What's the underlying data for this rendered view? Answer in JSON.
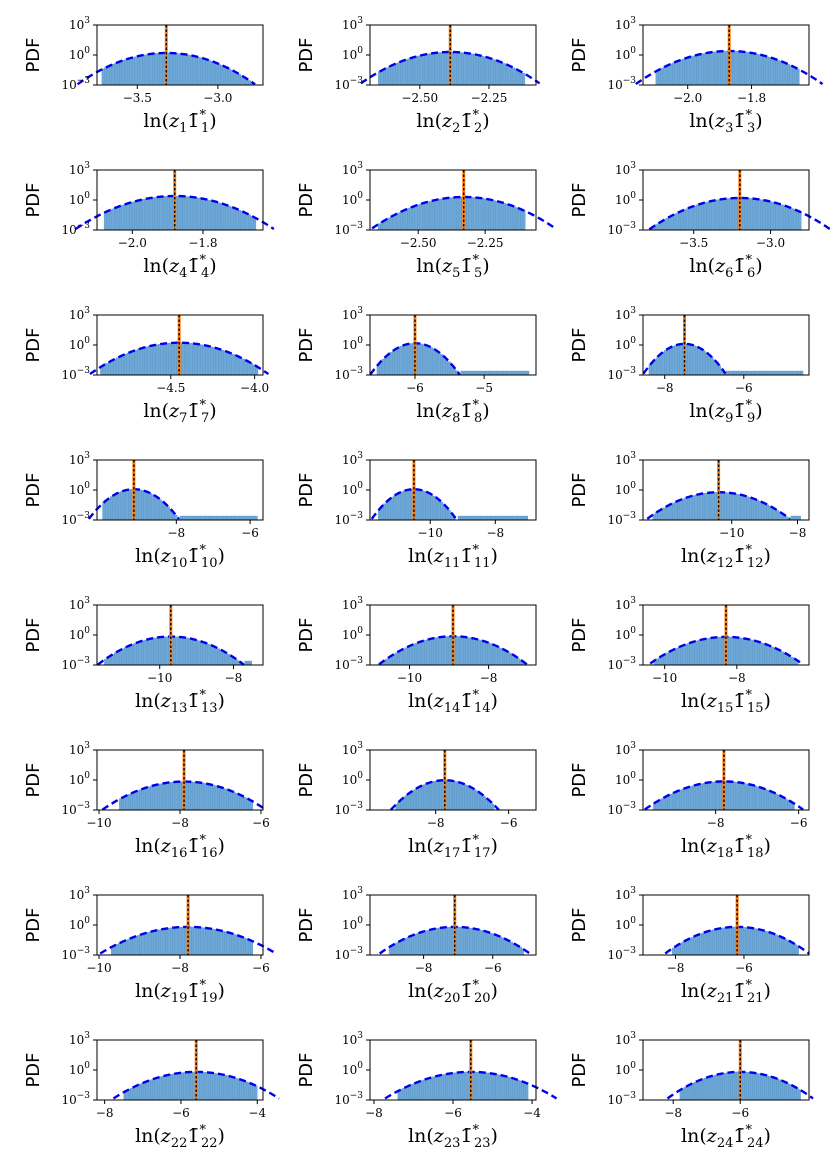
{
  "chart_data": [
    {
      "type": "histogram",
      "panel": 1,
      "ylabel": "PDF",
      "xlabel": {
        "idx": "1",
        "sub": "1"
      },
      "y_ticks": [
        "10",
        "10",
        "10"
      ],
      "y_tick_exps": [
        "3",
        "0",
        "−3"
      ],
      "ylim_log10": [
        -3,
        3
      ],
      "xlim": [
        -3.75,
        -2.72
      ],
      "xticks": [
        -3.5,
        -3.0
      ],
      "xtick_labels": [
        "−3.5",
        "−3.0"
      ],
      "mean": -3.32,
      "std": 0.145,
      "peak": 1.6,
      "range": [
        -3.72,
        -2.78
      ]
    },
    {
      "type": "histogram",
      "panel": 2,
      "ylabel": "PDF",
      "xlabel": {
        "idx": "2",
        "sub": "2"
      },
      "y_ticks": [
        "10",
        "10",
        "10"
      ],
      "y_tick_exps": [
        "3",
        "0",
        "−3"
      ],
      "ylim_log10": [
        -3,
        3
      ],
      "xlim": [
        -2.68,
        -2.08
      ],
      "xticks": [
        -2.5,
        -2.25
      ],
      "xtick_labels": [
        "−2.50",
        "−2.25"
      ],
      "mean": -2.39,
      "std": 0.085,
      "peak": 2.0,
      "range": [
        -2.65,
        -2.12
      ]
    },
    {
      "type": "histogram",
      "panel": 3,
      "ylabel": "PDF",
      "xlabel": {
        "idx": "3",
        "sub": "3"
      },
      "y_ticks": [
        "10",
        "10",
        "10"
      ],
      "y_tick_exps": [
        "3",
        "0",
        "−3"
      ],
      "ylim_log10": [
        -3,
        3
      ],
      "xlim": [
        -2.14,
        -1.62
      ],
      "xticks": [
        -2.0,
        -1.8
      ],
      "xtick_labels": [
        "−2.0",
        "−1.8"
      ],
      "mean": -1.87,
      "std": 0.075,
      "peak": 2.5,
      "range": [
        -2.1,
        -1.65
      ]
    },
    {
      "type": "histogram",
      "panel": 4,
      "ylabel": "PDF",
      "xlabel": {
        "idx": "4",
        "sub": "4"
      },
      "y_ticks": [
        "10",
        "10",
        "10"
      ],
      "y_tick_exps": [
        "3",
        "0",
        "−3"
      ],
      "ylim_log10": [
        -3,
        3
      ],
      "xlim": [
        -2.1,
        -1.63
      ],
      "xticks": [
        -2.0,
        -1.8
      ],
      "xtick_labels": [
        "−2.0",
        "−1.8"
      ],
      "mean": -1.88,
      "std": 0.072,
      "peak": 2.5,
      "range": [
        -2.08,
        -1.65
      ]
    },
    {
      "type": "histogram",
      "panel": 5,
      "ylabel": "PDF",
      "xlabel": {
        "idx": "5",
        "sub": "5"
      },
      "y_ticks": [
        "10",
        "10",
        "10"
      ],
      "y_tick_exps": [
        "3",
        "0",
        "−3"
      ],
      "ylim_log10": [
        -3,
        3
      ],
      "xlim": [
        -2.68,
        -2.06
      ],
      "xticks": [
        -2.5,
        -2.25
      ],
      "xtick_labels": [
        "−2.50",
        "−2.25"
      ],
      "mean": -2.33,
      "std": 0.09,
      "peak": 2.0,
      "range": [
        -2.65,
        -2.1
      ]
    },
    {
      "type": "histogram",
      "panel": 6,
      "ylabel": "PDF",
      "xlabel": {
        "idx": "6",
        "sub": "6"
      },
      "y_ticks": [
        "10",
        "10",
        "10"
      ],
      "y_tick_exps": [
        "3",
        "0",
        "−3"
      ],
      "ylim_log10": [
        -3,
        3
      ],
      "xlim": [
        -3.83,
        -2.75
      ],
      "xticks": [
        -3.5,
        -3.0
      ],
      "xtick_labels": [
        "−3.5",
        "−3.0"
      ],
      "mean": -3.2,
      "std": 0.155,
      "peak": 1.6,
      "range": [
        -3.8,
        -2.8
      ]
    },
    {
      "type": "histogram",
      "panel": 7,
      "ylabel": "PDF",
      "xlabel": {
        "idx": "7",
        "sub": "7"
      },
      "y_ticks": [
        "10",
        "10",
        "10"
      ],
      "y_tick_exps": [
        "3",
        "0",
        "−3"
      ],
      "ylim_log10": [
        -3,
        3
      ],
      "xlim": [
        -4.94,
        -3.95
      ],
      "xticks": [
        -4.5,
        -4.0
      ],
      "xtick_labels": [
        "−4.5",
        "−4.0"
      ],
      "mean": -4.45,
      "std": 0.14,
      "peak": 1.7,
      "range": [
        -4.92,
        -3.98
      ]
    },
    {
      "type": "histogram",
      "panel": 8,
      "ylabel": "PDF",
      "xlabel": {
        "idx": "8",
        "sub": "8"
      },
      "y_ticks": [
        "10",
        "10",
        "10"
      ],
      "y_tick_exps": [
        "3",
        "0",
        "−3"
      ],
      "ylim_log10": [
        -3,
        3
      ],
      "xlim": [
        -6.65,
        -4.25
      ],
      "xticks": [
        -6,
        -5
      ],
      "xtick_labels": [
        "−6",
        "−5"
      ],
      "mean": -6.0,
      "std": 0.17,
      "peak": 1.5,
      "range": [
        -6.55,
        -4.35
      ]
    },
    {
      "type": "histogram",
      "panel": 9,
      "ylabel": "PDF",
      "xlabel": {
        "idx": "9",
        "sub": "9"
      },
      "y_ticks": [
        "10",
        "10",
        "10"
      ],
      "y_tick_exps": [
        "3",
        "0",
        "−3"
      ],
      "ylim_log10": [
        -3,
        3
      ],
      "xlim": [
        -8.55,
        -4.35
      ],
      "xticks": [
        -8,
        -6
      ],
      "xtick_labels": [
        "−8",
        "−6"
      ],
      "mean": -7.5,
      "std": 0.28,
      "peak": 1.3,
      "range": [
        -8.4,
        -4.5
      ]
    },
    {
      "type": "histogram",
      "panel": 10,
      "ylabel": "PDF",
      "xlabel": {
        "idx": "10",
        "sub": "10"
      },
      "y_ticks": [
        "10",
        "10",
        "10"
      ],
      "y_tick_exps": [
        "3",
        "0",
        "−3"
      ],
      "ylim_log10": [
        -3,
        3
      ],
      "xlim": [
        -10.15,
        -5.65
      ],
      "xticks": [
        -8,
        -6
      ],
      "xtick_labels": [
        "−8",
        "−6"
      ],
      "mean": -9.15,
      "std": 0.33,
      "peak": 1.2,
      "range": [
        -10.0,
        -5.8
      ]
    },
    {
      "type": "histogram",
      "panel": 11,
      "ylabel": "PDF",
      "xlabel": {
        "idx": "11",
        "sub": "11"
      },
      "y_ticks": [
        "10",
        "10",
        "10"
      ],
      "y_tick_exps": [
        "3",
        "0",
        "−3"
      ],
      "ylim_log10": [
        -3,
        3
      ],
      "xlim": [
        -11.85,
        -6.75
      ],
      "xticks": [
        -10,
        -8
      ],
      "xtick_labels": [
        "−10",
        "−8"
      ],
      "mean": -10.5,
      "std": 0.35,
      "peak": 1.2,
      "range": [
        -11.6,
        -7.0
      ]
    },
    {
      "type": "histogram",
      "panel": 12,
      "ylabel": "PDF",
      "xlabel": {
        "idx": "12",
        "sub": "12"
      },
      "y_ticks": [
        "10",
        "10",
        "10"
      ],
      "y_tick_exps": [
        "3",
        "0",
        "−3"
      ],
      "ylim_log10": [
        -3,
        3
      ],
      "xlim": [
        -12.7,
        -7.65
      ],
      "xticks": [
        -10,
        -8
      ],
      "xtick_labels": [
        "−10",
        "−8"
      ],
      "mean": -10.4,
      "std": 0.62,
      "peak": 0.6,
      "range": [
        -12.4,
        -7.9
      ]
    },
    {
      "type": "histogram",
      "panel": 13,
      "ylabel": "PDF",
      "xlabel": {
        "idx": "13",
        "sub": "13"
      },
      "y_ticks": [
        "10",
        "10",
        "10"
      ],
      "y_tick_exps": [
        "3",
        "0",
        "−3"
      ],
      "ylim_log10": [
        -3,
        3
      ],
      "xlim": [
        -11.7,
        -7.2
      ],
      "xticks": [
        -10,
        -8
      ],
      "xtick_labels": [
        "−10",
        "−8"
      ],
      "mean": -9.7,
      "std": 0.55,
      "peak": 0.7,
      "range": [
        -11.5,
        -7.5
      ]
    },
    {
      "type": "histogram",
      "panel": 14,
      "ylabel": "PDF",
      "xlabel": {
        "idx": "14",
        "sub": "14"
      },
      "y_ticks": [
        "10",
        "10",
        "10"
      ],
      "y_tick_exps": [
        "3",
        "0",
        "−3"
      ],
      "ylim_log10": [
        -3,
        3
      ],
      "xlim": [
        -11.0,
        -6.8
      ],
      "xticks": [
        -10,
        -8
      ],
      "xtick_labels": [
        "−10",
        "−8"
      ],
      "mean": -8.9,
      "std": 0.52,
      "peak": 0.75,
      "range": [
        -10.8,
        -7.1
      ]
    },
    {
      "type": "histogram",
      "panel": 15,
      "ylabel": "PDF",
      "xlabel": {
        "idx": "15",
        "sub": "15"
      },
      "y_ticks": [
        "10",
        "10",
        "10"
      ],
      "y_tick_exps": [
        "3",
        "0",
        "−3"
      ],
      "ylim_log10": [
        -3,
        3
      ],
      "xlim": [
        -10.6,
        -6.0
      ],
      "xticks": [
        -10,
        -8
      ],
      "xtick_labels": [
        "−10",
        "−8"
      ],
      "mean": -8.3,
      "std": 0.6,
      "peak": 0.65,
      "range": [
        -10.3,
        -6.3
      ]
    },
    {
      "type": "histogram",
      "panel": 16,
      "ylabel": "PDF",
      "xlabel": {
        "idx": "16",
        "sub": "16"
      },
      "y_ticks": [
        "10",
        "10",
        "10"
      ],
      "y_tick_exps": [
        "3",
        "0",
        "−3"
      ],
      "ylim_log10": [
        -3,
        3
      ],
      "xlim": [
        -10.05,
        -5.95
      ],
      "xticks": [
        -10,
        -8,
        -6
      ],
      "xtick_labels": [
        "−10",
        "−8",
        "−6"
      ],
      "mean": -7.9,
      "std": 0.56,
      "peak": 0.7,
      "range": [
        -9.5,
        -6.2
      ]
    },
    {
      "type": "histogram",
      "panel": 17,
      "ylabel": "PDF",
      "xlabel": {
        "idx": "17",
        "sub": "17"
      },
      "y_ticks": [
        "10",
        "10",
        "10"
      ],
      "y_tick_exps": [
        "3",
        "0",
        "−3"
      ],
      "ylim_log10": [
        -3,
        3
      ],
      "xlim": [
        -9.8,
        -5.25
      ],
      "xticks": [
        -8,
        -6
      ],
      "xtick_labels": [
        "−8",
        "−6"
      ],
      "mean": -7.75,
      "std": 0.4,
      "peak": 0.95,
      "range": [
        -9.1,
        -6.4
      ]
    },
    {
      "type": "histogram",
      "panel": 18,
      "ylabel": "PDF",
      "xlabel": {
        "idx": "18",
        "sub": "18"
      },
      "y_ticks": [
        "10",
        "10",
        "10"
      ],
      "y_tick_exps": [
        "3",
        "0",
        "−3"
      ],
      "ylim_log10": [
        -3,
        3
      ],
      "xlim": [
        -9.75,
        -5.75
      ],
      "xticks": [
        -8,
        -6
      ],
      "xtick_labels": [
        "−8",
        "−6"
      ],
      "mean": -7.8,
      "std": 0.53,
      "peak": 0.72,
      "range": [
        -9.5,
        -6.1
      ]
    },
    {
      "type": "histogram",
      "panel": 19,
      "ylabel": "PDF",
      "xlabel": {
        "idx": "19",
        "sub": "19"
      },
      "y_ticks": [
        "10",
        "10",
        "10"
      ],
      "y_tick_exps": [
        "3",
        "0",
        "−3"
      ],
      "ylim_log10": [
        -3,
        3
      ],
      "xlim": [
        -10.05,
        -5.95
      ],
      "xticks": [
        -10,
        -8,
        -6
      ],
      "xtick_labels": [
        "−10",
        "−8",
        "−6"
      ],
      "mean": -7.8,
      "std": 0.62,
      "peak": 0.65,
      "range": [
        -9.7,
        -6.2
      ]
    },
    {
      "type": "histogram",
      "panel": 20,
      "ylabel": "PDF",
      "xlabel": {
        "idx": "20",
        "sub": "20"
      },
      "y_ticks": [
        "10",
        "10",
        "10"
      ],
      "y_tick_exps": [
        "3",
        "0",
        "−3"
      ],
      "ylim_log10": [
        -3,
        3
      ],
      "xlim": [
        -9.55,
        -4.75
      ],
      "xticks": [
        -8,
        -6
      ],
      "xtick_labels": [
        "−8",
        "−6"
      ],
      "mean": -7.1,
      "std": 0.62,
      "peak": 0.65,
      "range": [
        -9.0,
        -5.1
      ]
    },
    {
      "type": "histogram",
      "panel": 21,
      "ylabel": "PDF",
      "xlabel": {
        "idx": "21",
        "sub": "21"
      },
      "y_ticks": [
        "10",
        "10",
        "10"
      ],
      "y_tick_exps": [
        "3",
        "0",
        "−3"
      ],
      "ylim_log10": [
        -3,
        3
      ],
      "xlim": [
        -8.95,
        -4.1
      ],
      "xticks": [
        -8,
        -6
      ],
      "xtick_labels": [
        "−8",
        "−6"
      ],
      "mean": -6.2,
      "std": 0.6,
      "peak": 0.65,
      "range": [
        -8.1,
        -4.4
      ]
    },
    {
      "type": "histogram",
      "panel": 22,
      "ylabel": "PDF",
      "xlabel": {
        "idx": "22",
        "sub": "22"
      },
      "y_ticks": [
        "10",
        "10",
        "10"
      ],
      "y_tick_exps": [
        "3",
        "0",
        "−3"
      ],
      "ylim_log10": [
        -3,
        3
      ],
      "xlim": [
        -8.2,
        -3.85
      ],
      "xticks": [
        -8,
        -6,
        -4
      ],
      "xtick_labels": [
        "−8",
        "−6",
        "−4"
      ],
      "mean": -5.6,
      "std": 0.62,
      "peak": 0.65,
      "range": [
        -7.5,
        -4.0
      ]
    },
    {
      "type": "histogram",
      "panel": 23,
      "ylabel": "PDF",
      "xlabel": {
        "idx": "23",
        "sub": "23"
      },
      "y_ticks": [
        "10",
        "10",
        "10"
      ],
      "y_tick_exps": [
        "3",
        "0",
        "−3"
      ],
      "ylim_log10": [
        -3,
        3
      ],
      "xlim": [
        -8.1,
        -3.9
      ],
      "xticks": [
        -8,
        -6,
        -4
      ],
      "xtick_labels": [
        "−8",
        "−6",
        "−4"
      ],
      "mean": -5.55,
      "std": 0.62,
      "peak": 0.65,
      "range": [
        -7.4,
        -4.1
      ]
    },
    {
      "type": "histogram",
      "panel": 24,
      "ylabel": "PDF",
      "xlabel": {
        "idx": "24",
        "sub": "24"
      },
      "y_ticks": [
        "10",
        "10",
        "10"
      ],
      "y_tick_exps": [
        "3",
        "0",
        "−3"
      ],
      "ylim_log10": [
        -3,
        3
      ],
      "xlim": [
        -8.9,
        -3.95
      ],
      "xticks": [
        -8,
        -6
      ],
      "xtick_labels": [
        "−8",
        "−6"
      ],
      "mean": -6.0,
      "std": 0.62,
      "peak": 0.65,
      "range": [
        -7.8,
        -4.2
      ]
    }
  ],
  "colors": {
    "bars": "#6fa8d6",
    "bar_edge": "#4d8fc4",
    "fit": "#0000ee",
    "mean_line": "#ff7f0e",
    "median_line": "#000000",
    "axis": "#000000"
  },
  "label_parts": {
    "ln": "ln(",
    "z": "z",
    "bar": "1̄",
    "star": "*",
    "close": ")"
  }
}
